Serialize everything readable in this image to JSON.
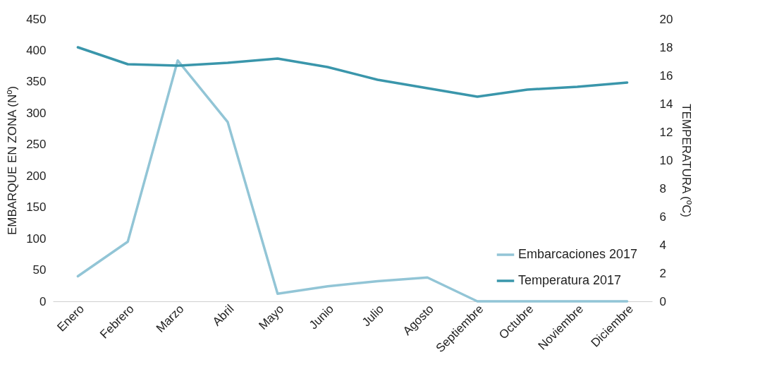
{
  "chart_data": {
    "type": "line",
    "categories": [
      "Enero",
      "Febrero",
      "Marzo",
      "Abril",
      "Mayo",
      "Junio",
      "Julio",
      "Agosto",
      "Septiembre",
      "Octubre",
      "Noviembre",
      "Diciembre"
    ],
    "series": [
      {
        "name": "Embarcaciones 2017",
        "color": "#92c5d6",
        "values": [
          40,
          95,
          384,
          286,
          12,
          24,
          32,
          38,
          0,
          0,
          0,
          0
        ]
      },
      {
        "name": "Temperatura 2017",
        "color": "#3a96ab",
        "axis": "y2",
        "values": [
          18.0,
          16.8,
          16.7,
          16.9,
          17.2,
          16.6,
          15.7,
          15.1,
          14.5,
          15.0,
          15.2,
          15.5
        ]
      }
    ],
    "ylabel": "EMBARQUE EN ZONA (Nº)",
    "y2label": "TEMPERATURA (ºC)",
    "ylim": [
      0,
      450
    ],
    "yticks": [
      0,
      50,
      100,
      150,
      200,
      250,
      300,
      350,
      400,
      450
    ],
    "y2lim": [
      0,
      20
    ],
    "y2ticks": [
      0,
      2,
      4,
      6,
      8,
      10,
      12,
      14,
      16,
      18,
      20
    ],
    "grid": false,
    "legend": "bottom right",
    "marker": "none",
    "line_style": "solid"
  }
}
